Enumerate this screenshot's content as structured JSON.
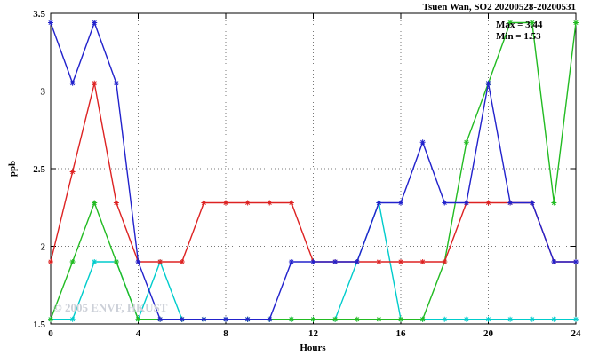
{
  "figure": {
    "title": "Tsuen Wan, SO2 20200528-20200531",
    "watermark": "© 2005 ENVF, HKUST",
    "annotation": {
      "max": "Max = 3.44",
      "min": "Min = 1.53"
    }
  },
  "chart_data": {
    "type": "line",
    "title": "Tsuen Wan, SO2 20200528-20200531",
    "xlabel": "Hours",
    "ylabel": "ppb",
    "xlim": [
      0,
      24
    ],
    "ylim": [
      1.5,
      3.5
    ],
    "xticks": {
      "values": [
        0,
        4,
        8,
        12,
        16,
        20,
        24
      ],
      "labels": [
        "0",
        "4",
        "8",
        "12",
        "16",
        "20",
        "24"
      ]
    },
    "yticks": {
      "values": [
        1.5,
        2,
        2.5,
        3,
        3.5
      ],
      "labels": [
        "1.5",
        "2",
        "2.5",
        "3",
        "3.5"
      ]
    },
    "grid": true,
    "legend": "none",
    "marker": "asterisk",
    "stats": {
      "max": 3.44,
      "min": 1.53
    },
    "x": [
      0,
      1,
      2,
      3,
      4,
      5,
      6,
      7,
      8,
      9,
      10,
      11,
      12,
      13,
      14,
      15,
      16,
      17,
      18,
      19,
      20,
      21,
      22,
      23,
      24
    ],
    "series": [
      {
        "name": "cyan",
        "color": "#00cccc",
        "values": [
          1.53,
          1.53,
          1.9,
          1.9,
          1.53,
          1.9,
          1.53,
          1.53,
          1.53,
          1.53,
          1.53,
          1.53,
          1.53,
          1.53,
          1.9,
          2.28,
          1.53,
          1.53,
          1.53,
          1.53,
          1.53,
          1.53,
          1.53,
          1.53,
          1.53
        ]
      },
      {
        "name": "green",
        "color": "#22bb22",
        "values": [
          1.53,
          1.9,
          2.28,
          1.9,
          1.53,
          1.53,
          1.53,
          1.53,
          1.53,
          1.53,
          1.53,
          1.53,
          1.53,
          1.53,
          1.53,
          1.53,
          1.53,
          1.53,
          1.9,
          2.67,
          3.05,
          3.44,
          3.44,
          2.28,
          3.44
        ]
      },
      {
        "name": "red",
        "color": "#dd2222",
        "values": [
          1.9,
          2.48,
          3.05,
          2.28,
          1.9,
          1.9,
          1.9,
          2.28,
          2.28,
          2.28,
          2.28,
          2.28,
          1.9,
          1.9,
          1.9,
          1.9,
          1.9,
          1.9,
          1.9,
          2.28,
          2.28,
          2.28,
          2.28,
          1.9,
          1.9
        ]
      },
      {
        "name": "blue",
        "color": "#2222cc",
        "values": [
          3.44,
          3.05,
          3.44,
          3.05,
          1.9,
          1.53,
          1.53,
          1.53,
          1.53,
          1.53,
          1.53,
          1.9,
          1.9,
          1.9,
          1.9,
          2.28,
          2.28,
          2.67,
          2.28,
          2.28,
          3.05,
          2.28,
          2.28,
          1.9,
          1.9
        ]
      }
    ]
  }
}
